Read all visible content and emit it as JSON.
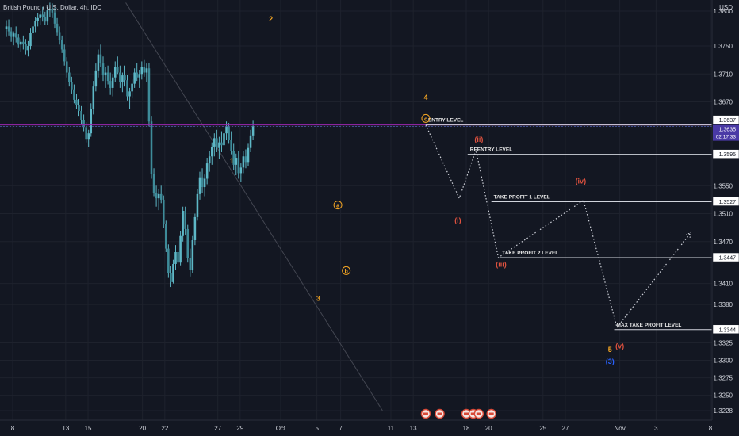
{
  "header": {
    "symbol_title": "British Pound / U.S. Dollar, 4h, IDC"
  },
  "price_axis": {
    "currency": "USD",
    "ticks": [
      "1.3800",
      "1.3750",
      "1.3710",
      "1.3670",
      "1.3635",
      "1.3550",
      "1.3510",
      "1.3470",
      "1.3410",
      "1.3380",
      "1.3325",
      "1.3300",
      "1.3275",
      "1.3250",
      "1.3228"
    ],
    "tick_prices": [
      1.38,
      1.375,
      1.371,
      1.367,
      1.3635,
      1.355,
      1.351,
      1.347,
      1.341,
      1.338,
      1.3325,
      1.33,
      1.3275,
      1.325,
      1.3228
    ],
    "current_price": "1.3635",
    "countdown": "02:17:33",
    "tags": [
      {
        "id": "entry",
        "text": "1.3637",
        "price": 1.3637
      },
      {
        "id": "reentry",
        "text": "1.3595",
        "price": 1.3595
      },
      {
        "id": "tp1",
        "text": "1.3527",
        "price": 1.3527
      },
      {
        "id": "tp2",
        "text": "1.3447",
        "price": 1.3447
      },
      {
        "id": "maxtp",
        "text": "1.3344",
        "price": 1.3344
      }
    ]
  },
  "time_axis": {
    "labels": [
      "8",
      "13",
      "15",
      "20",
      "22",
      "27",
      "29",
      "Oct",
      "5",
      "7",
      "11",
      "13",
      "18",
      "20",
      "25",
      "27",
      "Nov",
      "3",
      "8"
    ],
    "label_positions": [
      0,
      3.8,
      5.4,
      9.3,
      10.9,
      14.7,
      16.3,
      19.2,
      21.8,
      23.5,
      27.1,
      28.7,
      32.5,
      34.1,
      38,
      39.6,
      43.5,
      46.1,
      50
    ]
  },
  "levels": [
    {
      "id": "entry",
      "label": "ENTRY LEVEL",
      "price": 1.3637,
      "start_bar": 29.6,
      "color": "#d1d4dc"
    },
    {
      "id": "reentry",
      "label": "REENTRY LEVEL",
      "price": 1.3595,
      "start_bar": 32.6,
      "color": "#d1d4dc"
    },
    {
      "id": "tp1",
      "label": "TAKE PROFIT 1 LEVEL",
      "price": 1.3527,
      "start_bar": 34.3,
      "color": "#d1d4dc"
    },
    {
      "id": "tp2",
      "label": "TAKE PROFIT 2 LEVEL",
      "price": 1.3447,
      "start_bar": 34.9,
      "color": "#d1d4dc"
    },
    {
      "id": "maxtp",
      "label": "MAX TAKE PROFIT LEVEL",
      "price": 1.3344,
      "start_bar": 43.1,
      "color": "#d1d4dc"
    }
  ],
  "price_line": {
    "price": 1.3637,
    "color": "#9c27b0"
  },
  "wave_labels": [
    {
      "text": "2",
      "bar": 18.5,
      "price": 1.3785,
      "color": "#f5a623",
      "circled": false
    },
    {
      "text": "1",
      "bar": 15.7,
      "price": 1.3582,
      "color": "#f5a623",
      "circled": false
    },
    {
      "text": "3",
      "bar": 21.9,
      "price": 1.3385,
      "color": "#f5a623",
      "circled": false
    },
    {
      "text": "4",
      "bar": 29.6,
      "price": 1.3673,
      "color": "#f5a623",
      "circled": false
    },
    {
      "text": "5",
      "bar": 42.8,
      "price": 1.3312,
      "color": "#f5a623",
      "circled": false
    },
    {
      "text": "a",
      "bar": 23.3,
      "price": 1.3519,
      "color": "#f5a623",
      "circled": true
    },
    {
      "text": "b",
      "bar": 23.9,
      "price": 1.3425,
      "color": "#f5a623",
      "circled": true
    },
    {
      "text": "c",
      "bar": 29.6,
      "price": 1.3643,
      "color": "#f5a623",
      "circled": true
    },
    {
      "text": "(i)",
      "bar": 31.9,
      "price": 1.3497,
      "color": "#e0523f",
      "circled": false
    },
    {
      "text": "(ii)",
      "bar": 33.4,
      "price": 1.3613,
      "color": "#e0523f",
      "circled": false
    },
    {
      "text": "(iii)",
      "bar": 35.0,
      "price": 1.3434,
      "color": "#e0523f",
      "circled": false
    },
    {
      "text": "(iv)",
      "bar": 40.7,
      "price": 1.3553,
      "color": "#e0523f",
      "circled": false
    },
    {
      "text": "(v)",
      "bar": 43.5,
      "price": 1.3317,
      "color": "#e0523f",
      "circled": false
    },
    {
      "text": "(3)",
      "bar": 42.8,
      "price": 1.3295,
      "color": "#2962ff",
      "circled": false
    }
  ],
  "projection_path": [
    {
      "bar": 29.6,
      "price": 1.3637
    },
    {
      "bar": 32.0,
      "price": 1.3532
    },
    {
      "bar": 33.2,
      "price": 1.3601
    },
    {
      "bar": 34.8,
      "price": 1.3447
    },
    {
      "bar": 40.9,
      "price": 1.3529
    },
    {
      "bar": 43.3,
      "price": 1.3347
    },
    {
      "bar": 48.6,
      "price": 1.3483
    }
  ],
  "trendline": [
    {
      "bar": 8.1,
      "price": 1.3812
    },
    {
      "bar": 26.5,
      "price": 1.3228
    }
  ],
  "event_badges": [
    "event-1",
    "event-2",
    "event-3",
    "event-4",
    "event-5",
    "event-6"
  ],
  "event_badge_bars": [
    29.6,
    30.6,
    32.5,
    33.0,
    33.4,
    34.3
  ],
  "candles": [
    [
      1.3774,
      1.3787,
      1.3763,
      1.3778
    ],
    [
      1.3778,
      1.3788,
      1.3765,
      1.3771
    ],
    [
      1.3771,
      1.3777,
      1.3756,
      1.3763
    ],
    [
      1.3763,
      1.3771,
      1.3751,
      1.3768
    ],
    [
      1.3768,
      1.3778,
      1.3755,
      1.3762
    ],
    [
      1.3762,
      1.3767,
      1.3748,
      1.3752
    ],
    [
      1.3752,
      1.376,
      1.3742,
      1.3756
    ],
    [
      1.3756,
      1.3765,
      1.3745,
      1.3753
    ],
    [
      1.3753,
      1.376,
      1.3738,
      1.3744
    ],
    [
      1.3744,
      1.3757,
      1.3735,
      1.375
    ],
    [
      1.375,
      1.3776,
      1.3745,
      1.3769
    ],
    [
      1.3769,
      1.3785,
      1.376,
      1.3778
    ],
    [
      1.3778,
      1.3791,
      1.377,
      1.3786
    ],
    [
      1.3786,
      1.3797,
      1.3778,
      1.379
    ],
    [
      1.379,
      1.38,
      1.378,
      1.3795
    ],
    [
      1.3795,
      1.3806,
      1.3785,
      1.3791
    ],
    [
      1.3791,
      1.3799,
      1.378,
      1.3785
    ],
    [
      1.3785,
      1.3806,
      1.378,
      1.3801
    ],
    [
      1.3801,
      1.3812,
      1.3791,
      1.3803
    ],
    [
      1.3803,
      1.3811,
      1.379,
      1.3798
    ],
    [
      1.3798,
      1.3805,
      1.3776,
      1.3782
    ],
    [
      1.3782,
      1.379,
      1.3765,
      1.377
    ],
    [
      1.377,
      1.3778,
      1.3752,
      1.3758
    ],
    [
      1.3758,
      1.3765,
      1.374,
      1.3745
    ],
    [
      1.3745,
      1.3752,
      1.3722,
      1.3728
    ],
    [
      1.3728,
      1.3734,
      1.3705,
      1.3712
    ],
    [
      1.3712,
      1.372,
      1.3692,
      1.3698
    ],
    [
      1.3698,
      1.3706,
      1.3682,
      1.3688
    ],
    [
      1.3688,
      1.3695,
      1.3668,
      1.3673
    ],
    [
      1.3673,
      1.3682,
      1.366,
      1.3666
    ],
    [
      1.3666,
      1.3674,
      1.365,
      1.3657
    ],
    [
      1.3657,
      1.3664,
      1.3638,
      1.3644
    ],
    [
      1.3644,
      1.3652,
      1.3628,
      1.3634
    ],
    [
      1.3634,
      1.3641,
      1.3612,
      1.3617
    ],
    [
      1.3617,
      1.363,
      1.3605,
      1.3625
    ],
    [
      1.3625,
      1.3668,
      1.362,
      1.366
    ],
    [
      1.366,
      1.37,
      1.3652,
      1.3692
    ],
    [
      1.3692,
      1.3725,
      1.3685,
      1.3715
    ],
    [
      1.3715,
      1.3745,
      1.3705,
      1.3738
    ],
    [
      1.3738,
      1.3752,
      1.372,
      1.3725
    ],
    [
      1.3725,
      1.3735,
      1.37,
      1.3708
    ],
    [
      1.3708,
      1.372,
      1.369,
      1.3712
    ],
    [
      1.3712,
      1.3722,
      1.3695,
      1.37
    ],
    [
      1.37,
      1.3712,
      1.368,
      1.369
    ],
    [
      1.369,
      1.371,
      1.3678,
      1.3705
    ],
    [
      1.3705,
      1.3728,
      1.3698,
      1.372
    ],
    [
      1.372,
      1.3735,
      1.371,
      1.3712
    ],
    [
      1.3712,
      1.3722,
      1.369,
      1.3698
    ],
    [
      1.3698,
      1.3712,
      1.3684,
      1.3708
    ],
    [
      1.3708,
      1.3722,
      1.3692,
      1.3701
    ],
    [
      1.3701,
      1.3709,
      1.3672,
      1.3678
    ],
    [
      1.3678,
      1.369,
      1.366,
      1.3685
    ],
    [
      1.3685,
      1.3702,
      1.3675,
      1.3696
    ],
    [
      1.3696,
      1.3718,
      1.369,
      1.3712
    ],
    [
      1.3712,
      1.3726,
      1.37,
      1.3705
    ],
    [
      1.3705,
      1.3716,
      1.369,
      1.371
    ],
    [
      1.371,
      1.3728,
      1.3702,
      1.372
    ],
    [
      1.372,
      1.373,
      1.3706,
      1.3712
    ],
    [
      1.3712,
      1.3725,
      1.3698,
      1.3718
    ],
    [
      1.3718,
      1.3726,
      1.3635,
      1.3642
    ],
    [
      1.3642,
      1.365,
      1.356,
      1.3567
    ],
    [
      1.3567,
      1.3575,
      1.3535,
      1.354
    ],
    [
      1.354,
      1.355,
      1.352,
      1.3532
    ],
    [
      1.3532,
      1.3545,
      1.3515,
      1.3538
    ],
    [
      1.3538,
      1.355,
      1.3525,
      1.353
    ],
    [
      1.353,
      1.3536,
      1.349,
      1.3495
    ],
    [
      1.3495,
      1.35,
      1.3455,
      1.346
    ],
    [
      1.346,
      1.3466,
      1.3418,
      1.3425
    ],
    [
      1.3425,
      1.3435,
      1.3405,
      1.3412
    ],
    [
      1.3412,
      1.3444,
      1.341,
      1.3438
    ],
    [
      1.3438,
      1.3465,
      1.343,
      1.3455
    ],
    [
      1.3455,
      1.347,
      1.3432,
      1.344
    ],
    [
      1.344,
      1.3485,
      1.3436,
      1.3478
    ],
    [
      1.3478,
      1.352,
      1.347,
      1.3514
    ],
    [
      1.3514,
      1.352,
      1.348,
      1.3488
    ],
    [
      1.3488,
      1.3494,
      1.344,
      1.3446
    ],
    [
      1.3446,
      1.346,
      1.342,
      1.343
    ],
    [
      1.343,
      1.3478,
      1.3425,
      1.3472
    ],
    [
      1.3472,
      1.351,
      1.3465,
      1.3505
    ],
    [
      1.3505,
      1.3545,
      1.35,
      1.3538
    ],
    [
      1.3538,
      1.357,
      1.353,
      1.3562
    ],
    [
      1.3562,
      1.3575,
      1.354,
      1.3548
    ],
    [
      1.3548,
      1.3566,
      1.3535,
      1.356
    ],
    [
      1.356,
      1.359,
      1.3552,
      1.3582
    ],
    [
      1.3582,
      1.36,
      1.357,
      1.3592
    ],
    [
      1.3592,
      1.3612,
      1.358,
      1.3605
    ],
    [
      1.3605,
      1.3625,
      1.3592,
      1.3618
    ],
    [
      1.3618,
      1.363,
      1.3598,
      1.3604
    ],
    [
      1.3604,
      1.362,
      1.3588,
      1.3612
    ],
    [
      1.3612,
      1.3628,
      1.3598,
      1.3608
    ],
    [
      1.3608,
      1.3632,
      1.3602,
      1.3625
    ],
    [
      1.3625,
      1.3642,
      1.3615,
      1.3635
    ],
    [
      1.3635,
      1.364,
      1.361,
      1.3616
    ],
    [
      1.3616,
      1.3628,
      1.3595,
      1.36
    ],
    [
      1.36,
      1.361,
      1.3572,
      1.358
    ],
    [
      1.358,
      1.3596,
      1.3565,
      1.359
    ],
    [
      1.359,
      1.36,
      1.356,
      1.3568
    ],
    [
      1.3568,
      1.3582,
      1.3555,
      1.3576
    ],
    [
      1.3576,
      1.36,
      1.3568,
      1.3592
    ],
    [
      1.3592,
      1.3602,
      1.3575,
      1.3584
    ],
    [
      1.3584,
      1.361,
      1.3578,
      1.3604
    ],
    [
      1.3604,
      1.363,
      1.3598,
      1.3622
    ],
    [
      1.3622,
      1.3643,
      1.3615,
      1.3635
    ]
  ]
}
